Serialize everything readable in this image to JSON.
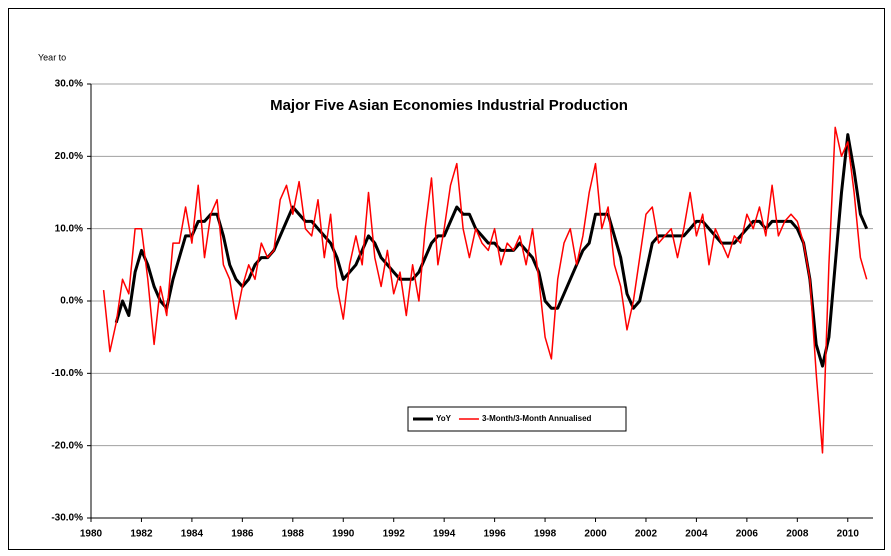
{
  "chart_data": {
    "type": "line",
    "title": "Major Five Asian Economies Industrial Production",
    "y_label": "Year to",
    "x": [
      1980.5,
      1980.75,
      1981,
      1981.25,
      1981.5,
      1981.75,
      1982,
      1982.25,
      1982.5,
      1982.75,
      1983,
      1983.25,
      1983.5,
      1983.75,
      1984,
      1984.25,
      1984.5,
      1984.75,
      1985,
      1985.25,
      1985.5,
      1985.75,
      1986,
      1986.25,
      1986.5,
      1986.75,
      1987,
      1987.25,
      1987.5,
      1987.75,
      1988,
      1988.25,
      1988.5,
      1988.75,
      1989,
      1989.25,
      1989.5,
      1989.75,
      1990,
      1990.25,
      1990.5,
      1990.75,
      1991,
      1991.25,
      1991.5,
      1991.75,
      1992,
      1992.25,
      1992.5,
      1992.75,
      1993,
      1993.25,
      1993.5,
      1993.75,
      1994,
      1994.25,
      1994.5,
      1994.75,
      1995,
      1995.25,
      1995.5,
      1995.75,
      1996,
      1996.25,
      1996.5,
      1996.75,
      1997,
      1997.25,
      1997.5,
      1997.75,
      1998,
      1998.25,
      1998.5,
      1998.75,
      1999,
      1999.25,
      1999.5,
      1999.75,
      2000,
      2000.25,
      2000.5,
      2000.75,
      2001,
      2001.25,
      2001.5,
      2001.75,
      2002,
      2002.25,
      2002.5,
      2002.75,
      2003,
      2003.25,
      2003.5,
      2003.75,
      2004,
      2004.25,
      2004.5,
      2004.75,
      2005,
      2005.25,
      2005.5,
      2005.75,
      2006,
      2006.25,
      2006.5,
      2006.75,
      2007,
      2007.25,
      2007.5,
      2007.75,
      2008,
      2008.25,
      2008.5,
      2008.75,
      2009,
      2009.25,
      2009.5,
      2009.75,
      2010,
      2010.25,
      2010.5,
      2010.75
    ],
    "series": [
      {
        "name": "YoY",
        "color": "#000000",
        "width": 3,
        "values": [
          null,
          null,
          -3,
          0,
          -2,
          4,
          7,
          5,
          2,
          0,
          -1,
          3,
          6,
          9,
          9,
          11,
          11,
          12,
          12,
          9,
          5,
          3,
          2,
          3,
          5,
          6,
          6,
          7,
          9,
          11,
          13,
          12,
          11,
          11,
          10,
          9,
          8,
          6,
          3,
          4,
          5,
          7,
          9,
          8,
          6,
          5,
          4,
          3,
          3,
          3,
          4,
          6,
          8,
          9,
          9,
          11,
          13,
          12,
          12,
          10,
          9,
          8,
          8,
          7,
          7,
          7,
          8,
          7,
          6,
          4,
          0,
          -1,
          -1,
          1,
          3,
          5,
          7,
          8,
          12,
          12,
          12,
          9,
          6,
          1,
          -1,
          0,
          4,
          8,
          9,
          9,
          9,
          9,
          9,
          10,
          11,
          11,
          10,
          9,
          8,
          8,
          8,
          9,
          10,
          11,
          11,
          10,
          11,
          11,
          11,
          11,
          10,
          8,
          3,
          -6,
          -9,
          -5,
          5,
          15,
          23,
          18,
          12,
          10
        ]
      },
      {
        "name": "3-Month/3-Month Annualised",
        "color": "#ff0000",
        "width": 1.5,
        "values": [
          1.5,
          -7,
          -3,
          3,
          1,
          10,
          10,
          3,
          -6,
          2,
          -2,
          8,
          8,
          13,
          8,
          16,
          6,
          12,
          14,
          5,
          3,
          -2.5,
          2,
          5,
          3,
          8,
          6,
          7,
          14,
          16,
          12,
          16.5,
          10,
          9,
          14,
          6,
          12,
          2,
          -2.5,
          5,
          9,
          5,
          15,
          6,
          2,
          7,
          1,
          4,
          -2,
          5,
          0,
          10,
          17,
          5,
          10,
          16,
          19,
          10,
          6,
          10,
          8,
          7,
          10,
          5,
          8,
          7,
          9,
          5,
          10,
          3,
          -5,
          -8,
          3,
          8,
          10,
          5,
          9,
          15,
          19,
          10,
          13,
          5,
          2,
          -4,
          0,
          6,
          12,
          13,
          8,
          9,
          10,
          6,
          10,
          15,
          9,
          12,
          5,
          10,
          8,
          6,
          9,
          8,
          12,
          10,
          13,
          9,
          16,
          9,
          11,
          12,
          11,
          8,
          3,
          -10,
          -21,
          5,
          24,
          20,
          22,
          15,
          6,
          3
        ]
      }
    ],
    "xlim": [
      1980,
      2011
    ],
    "xticks": [
      1980,
      1982,
      1984,
      1986,
      1988,
      1990,
      1992,
      1994,
      1996,
      1998,
      2000,
      2002,
      2004,
      2006,
      2008,
      2010
    ],
    "ylim": [
      -30,
      30
    ],
    "yticks": [
      {
        "value": -30,
        "label": "-30.0%"
      },
      {
        "value": -20,
        "label": "-20.0%"
      },
      {
        "value": -10,
        "label": "-10.0%"
      },
      {
        "value": 0,
        "label": "0.0%"
      },
      {
        "value": 10,
        "label": "10.0%"
      },
      {
        "value": 20,
        "label": "20.0%"
      },
      {
        "value": 30,
        "label": "30.0%"
      }
    ],
    "grid": true
  }
}
